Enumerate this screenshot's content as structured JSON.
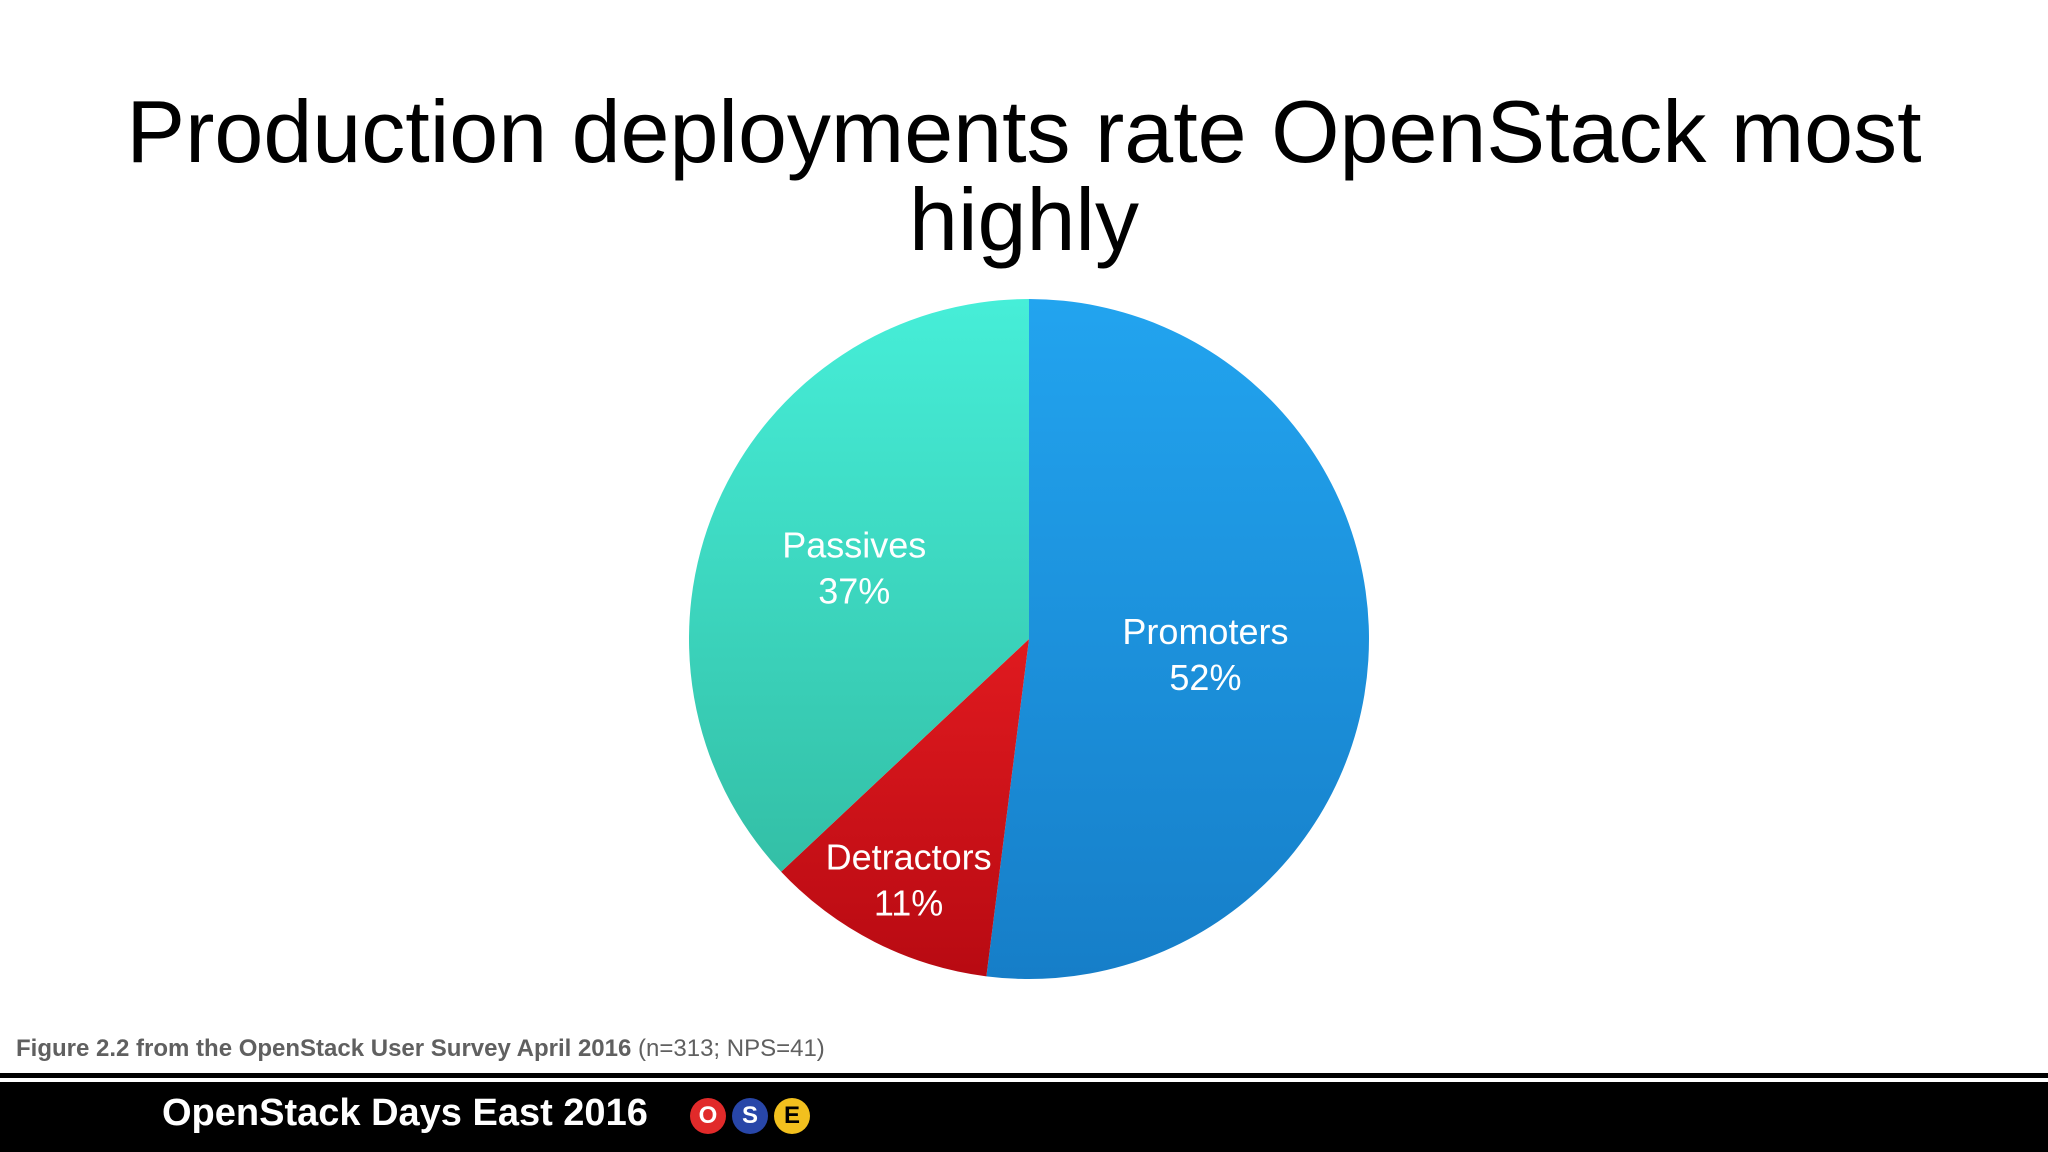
{
  "slide": {
    "title": "Production deployments rate OpenStack most highly"
  },
  "caption": {
    "source_bold": "Figure 2.2 from the OpenStack User Survey April 2016",
    "source_extra": " (n=313; NPS=41)"
  },
  "footer": {
    "event": "OpenStack Days East 2016",
    "badges": [
      {
        "letter": "O",
        "color": "#e12a2a"
      },
      {
        "letter": "S",
        "color": "#2846a8"
      },
      {
        "letter": "E",
        "color": "#f2c01e"
      }
    ]
  },
  "chart_data": {
    "type": "pie",
    "title": "",
    "start_angle_deg": 0,
    "direction": "clockwise",
    "slices": [
      {
        "label": "Promoters",
        "value": 52,
        "display": "52%",
        "color": "#1e90dc"
      },
      {
        "label": "Detractors",
        "value": 11,
        "display": "11%",
        "color": "#cc0f14"
      },
      {
        "label": "Passives",
        "value": 37,
        "display": "37%",
        "color": "#3ddcc4"
      }
    ]
  }
}
